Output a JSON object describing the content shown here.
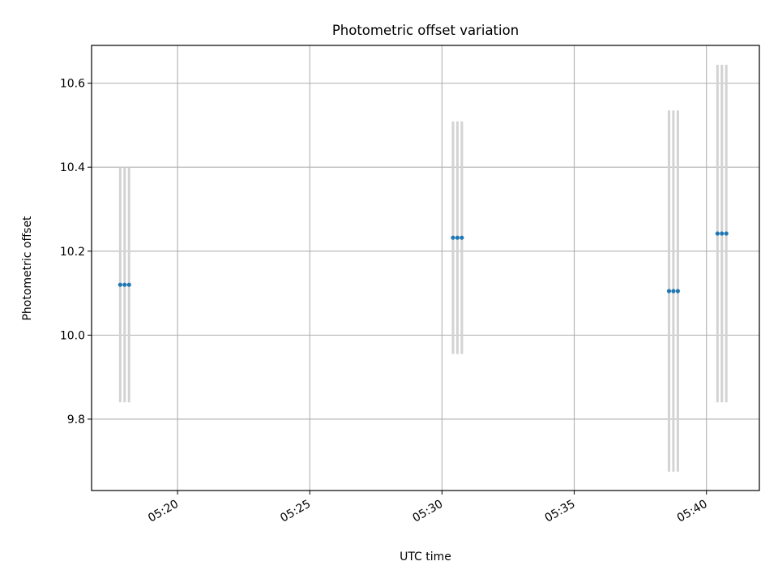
{
  "chart_data": {
    "type": "scatter",
    "title": "Photometric offset variation",
    "xlabel": "UTC time",
    "ylabel": "Photometric offset",
    "xlim": [
      "05:16:45",
      "05:42:00"
    ],
    "ylim": [
      9.63,
      10.69
    ],
    "x_ticks": [
      "05:20",
      "05:25",
      "05:30",
      "05:35",
      "05:40"
    ],
    "y_ticks": [
      "9.8",
      "10.0",
      "10.2",
      "10.4",
      "10.6"
    ],
    "grid": true,
    "legend": "none",
    "colors": {
      "points": "#1f77b4",
      "errorbars": "#d3d3d3",
      "grid": "#b0b0b0"
    },
    "points": [
      {
        "x": "05:17:50",
        "y": 10.12,
        "yerr": 0.28
      },
      {
        "x": "05:18:00",
        "y": 10.12,
        "yerr": 0.28
      },
      {
        "x": "05:18:10",
        "y": 10.12,
        "yerr": 0.28
      },
      {
        "x": "05:30:25",
        "y": 10.232,
        "yerr": 0.277
      },
      {
        "x": "05:30:35",
        "y": 10.232,
        "yerr": 0.277
      },
      {
        "x": "05:30:45",
        "y": 10.232,
        "yerr": 0.277
      },
      {
        "x": "05:38:35",
        "y": 10.105,
        "yerr": 0.43
      },
      {
        "x": "05:38:45",
        "y": 10.105,
        "yerr": 0.43
      },
      {
        "x": "05:38:55",
        "y": 10.105,
        "yerr": 0.43
      },
      {
        "x": "05:40:25",
        "y": 10.242,
        "yerr": 0.402
      },
      {
        "x": "05:40:35",
        "y": 10.242,
        "yerr": 0.402
      },
      {
        "x": "05:40:45",
        "y": 10.242,
        "yerr": 0.402
      }
    ]
  }
}
